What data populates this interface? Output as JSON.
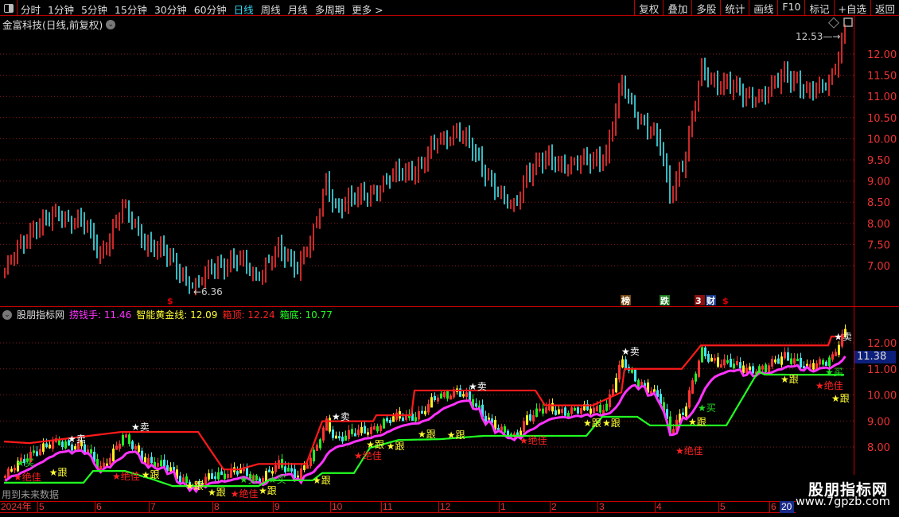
{
  "toolbar": {
    "periods": [
      "分时",
      "1分钟",
      "5分钟",
      "15分钟",
      "30分钟",
      "60分钟",
      "日线",
      "周线",
      "月线",
      "多周期",
      "更多 >"
    ],
    "active_period": "日线",
    "buttons": [
      "复权",
      "叠加",
      "多股",
      "统计",
      "画线",
      "F10",
      "标记",
      "+自选",
      "返回"
    ]
  },
  "title": "金富科技(日线,前复权)",
  "upper": {
    "axis_labels": [
      "12.00",
      "11.50",
      "11.00",
      "10.50",
      "10.00",
      "9.50",
      "9.00",
      "8.50",
      "8.00",
      "7.50",
      "7.00"
    ],
    "high_label": "12.53",
    "low_label": "6.36",
    "markers": [
      {
        "text": "$",
        "color": "#e00000"
      },
      {
        "text": "榜",
        "color": "#fff",
        "bg": "#7a4a12"
      },
      {
        "text": "跌",
        "color": "#fff",
        "bg": "#1f7a1f"
      },
      {
        "text": "3",
        "color": "#fff",
        "bg": "#8a1010"
      },
      {
        "text": "财",
        "color": "#fff",
        "bg": "#1a3a8a"
      },
      {
        "text": "$",
        "color": "#e00000"
      }
    ]
  },
  "lower": {
    "name": "股朋指标网",
    "indicators": [
      {
        "label": "捞钱手:",
        "value": "11.46",
        "color": "#ff33ff"
      },
      {
        "label": "智能黄金线:",
        "value": "12.09",
        "color": "#ffff33"
      },
      {
        "label": "箱顶:",
        "value": "12.24",
        "color": "#ff2222"
      },
      {
        "label": "箱底:",
        "value": "10.77",
        "color": "#22ff22"
      }
    ],
    "axis_labels": [
      "12.00",
      "11.00",
      "10.00",
      "9.00",
      "8.00"
    ],
    "current_price": "11.38",
    "future_note": "用到未来数据"
  },
  "time_axis": {
    "labels": [
      {
        "t": "2024年",
        "i": 0
      },
      {
        "t": "5",
        "i": 10
      },
      {
        "t": "6",
        "i": 28
      },
      {
        "t": "7",
        "i": 45
      },
      {
        "t": "8",
        "i": 65
      },
      {
        "t": "9",
        "i": 84
      },
      {
        "t": "10",
        "i": 102
      },
      {
        "t": "11",
        "i": 118
      },
      {
        "t": "12",
        "i": 136
      },
      {
        "t": "1",
        "i": 155
      },
      {
        "t": "2",
        "i": 171
      },
      {
        "t": "3",
        "i": 186
      },
      {
        "t": "4",
        "i": 204
      },
      {
        "t": "5",
        "i": 224
      },
      {
        "t": "6",
        "i": 240
      }
    ],
    "highlight": "20"
  },
  "watermark": {
    "name": "股朋指标网",
    "url": "www.7gpzb.com"
  },
  "chart_data": {
    "type": "candlestick",
    "bars": 265,
    "close_keypoints": [
      [
        0,
        6.9
      ],
      [
        9,
        7.9
      ],
      [
        17,
        8.2
      ],
      [
        24,
        8.1
      ],
      [
        30,
        7.2
      ],
      [
        37,
        8.4
      ],
      [
        44,
        7.6
      ],
      [
        51,
        7.2
      ],
      [
        60,
        6.5
      ],
      [
        66,
        7.0
      ],
      [
        74,
        7.1
      ],
      [
        79,
        6.8
      ],
      [
        86,
        7.3
      ],
      [
        92,
        7.0
      ],
      [
        97,
        7.7
      ],
      [
        101,
        9.0
      ],
      [
        104,
        8.4
      ],
      [
        109,
        8.5
      ],
      [
        116,
        8.8
      ],
      [
        124,
        9.2
      ],
      [
        131,
        9.3
      ],
      [
        136,
        10.0
      ],
      [
        142,
        10.2
      ],
      [
        149,
        9.5
      ],
      [
        156,
        8.6
      ],
      [
        160,
        8.4
      ],
      [
        164,
        9.2
      ],
      [
        171,
        9.5
      ],
      [
        179,
        9.4
      ],
      [
        189,
        9.6
      ],
      [
        194,
        11.3
      ],
      [
        199,
        10.6
      ],
      [
        206,
        9.8
      ],
      [
        209,
        8.7
      ],
      [
        214,
        9.6
      ],
      [
        219,
        11.7
      ],
      [
        224,
        11.3
      ],
      [
        231,
        11.1
      ],
      [
        239,
        11.0
      ],
      [
        245,
        11.6
      ],
      [
        249,
        11.3
      ],
      [
        252,
        11.0
      ],
      [
        256,
        11.3
      ],
      [
        260,
        11.5
      ],
      [
        264,
        12.4
      ]
    ],
    "upper_ylim": [
      6.5,
      12.5
    ],
    "lower_ylim": [
      7.0,
      12.6
    ],
    "box_top": [
      [
        0,
        8.21
      ],
      [
        8,
        8.15
      ],
      [
        37,
        8.58
      ],
      [
        61,
        8.58
      ],
      [
        69,
        7.14
      ],
      [
        74,
        7.14
      ],
      [
        80,
        7.35
      ],
      [
        95,
        7.35
      ],
      [
        100,
        8.99
      ],
      [
        116,
        8.99
      ],
      [
        117,
        9.22
      ],
      [
        128,
        9.22
      ],
      [
        129,
        10.17
      ],
      [
        167,
        10.17
      ],
      [
        170,
        9.6
      ],
      [
        180,
        9.6
      ],
      [
        185,
        9.6
      ],
      [
        194,
        10.1
      ],
      [
        195,
        11.0
      ],
      [
        213,
        11.0
      ],
      [
        219,
        11.9
      ],
      [
        259,
        11.9
      ],
      [
        260,
        12.24
      ],
      [
        264,
        12.24
      ]
    ],
    "box_bottom": [
      [
        0,
        6.63
      ],
      [
        25,
        6.63
      ],
      [
        28,
        7.08
      ],
      [
        38,
        7.08
      ],
      [
        47,
        6.75
      ],
      [
        53,
        6.5
      ],
      [
        80,
        6.5
      ],
      [
        83,
        6.72
      ],
      [
        97,
        6.72
      ],
      [
        100,
        7.0
      ],
      [
        110,
        7.0
      ],
      [
        115,
        7.97
      ],
      [
        124,
        8.27
      ],
      [
        137,
        8.3
      ],
      [
        151,
        8.43
      ],
      [
        183,
        8.43
      ],
      [
        188,
        9.16
      ],
      [
        199,
        9.16
      ],
      [
        203,
        8.83
      ],
      [
        227,
        8.83
      ],
      [
        237,
        10.9
      ],
      [
        239,
        10.78
      ],
      [
        264,
        10.77
      ]
    ],
    "signals": [
      {
        "t": "卖",
        "i": 21,
        "p": 8.34
      },
      {
        "t": "卖",
        "i": 41,
        "p": 8.79
      },
      {
        "t": "卖",
        "i": 104,
        "p": 9.19
      },
      {
        "t": "卖",
        "i": 147,
        "p": 10.35
      },
      {
        "t": "卖",
        "i": 195,
        "p": 11.69
      },
      {
        "t": "卖",
        "i": 265,
        "p": 12.65
      },
      {
        "t": "买",
        "i": 11,
        "p": 7.42
      },
      {
        "t": "买",
        "i": 75,
        "p": 6.78
      },
      {
        "t": "买",
        "i": 84,
        "p": 6.78
      },
      {
        "t": "买",
        "i": 219,
        "p": 9.53
      },
      {
        "t": "买",
        "i": 259,
        "p": 10.9
      },
      {
        "t": "跟",
        "i": 9,
        "p": 7.05
      },
      {
        "t": "跟",
        "i": 38,
        "p": 6.96
      },
      {
        "t": "跟",
        "i": 58,
        "p": 6.53
      },
      {
        "t": "跟",
        "i": 65,
        "p": 6.29
      },
      {
        "t": "跟",
        "i": 81,
        "p": 6.35
      },
      {
        "t": "跟",
        "i": 98,
        "p": 6.75
      },
      {
        "t": "跟",
        "i": 115,
        "p": 8.06
      },
      {
        "t": "跟",
        "i": 121,
        "p": 8.12
      },
      {
        "t": "跟",
        "i": 131,
        "p": 8.52
      },
      {
        "t": "跟",
        "i": 134,
        "p": 8.49
      },
      {
        "t": "跟",
        "i": 183,
        "p": 8.95
      },
      {
        "t": "跟",
        "i": 189,
        "p": 8.95
      },
      {
        "t": "跟",
        "i": 216,
        "p": 9.0
      },
      {
        "t": "跟",
        "i": 245,
        "p": 10.63
      },
      {
        "t": "跟",
        "i": 261,
        "p": 10.69
      },
      {
        "t": "绝佳",
        "i": 4,
        "p": 6.47
      },
      {
        "t": "绝佳",
        "i": 35,
        "p": 6.9
      },
      {
        "t": "绝佳",
        "i": 63,
        "p": 6.23
      },
      {
        "t": "绝佳",
        "i": 111,
        "p": 7.69
      },
      {
        "t": "绝佳",
        "i": 163,
        "p": 8.27
      },
      {
        "t": "绝佳",
        "i": 212,
        "p": 7.88
      },
      {
        "t": "绝佳",
        "i": 256,
        "p": 10.38
      }
    ],
    "signal_colors": {
      "卖": "#ffffff",
      "买": "#22dd22",
      "跟": "#ffff33",
      "绝佳": "#ff2222"
    },
    "colors": {
      "up": "#ff3333",
      "down": "#44e6f0",
      "box_top": "#ff1a1a",
      "box_bottom": "#22ff22",
      "line": "#ff33ff",
      "grid": "#8a1a1a"
    }
  }
}
